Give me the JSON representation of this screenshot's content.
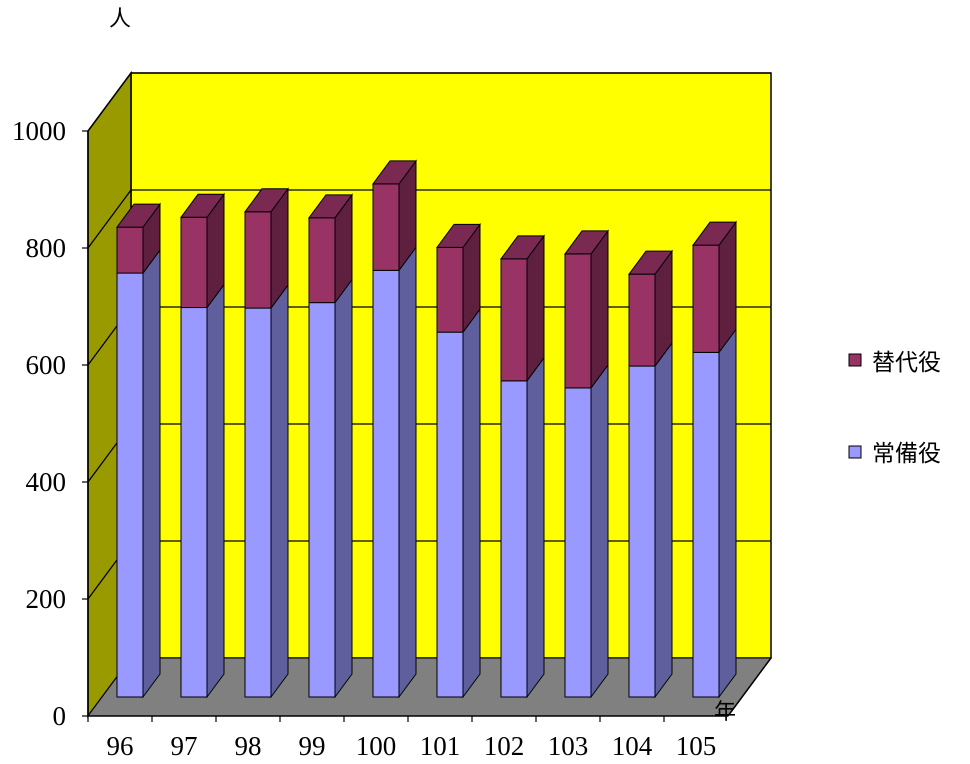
{
  "chart_data": {
    "type": "bar",
    "stacked": true,
    "three_d": true,
    "categories": [
      "96",
      "97",
      "98",
      "99",
      "100",
      "101",
      "102",
      "103",
      "104",
      "105"
    ],
    "series": [
      {
        "name": "常備役",
        "color": "#9999FF",
        "values": [
          775,
          712,
          711,
          721,
          780,
          667,
          578,
          565,
          605,
          630
        ]
      },
      {
        "name": "替代役",
        "color": "#993366",
        "values": [
          84,
          165,
          176,
          155,
          158,
          155,
          223,
          245,
          168,
          196
        ]
      }
    ],
    "y_ticks": [
      "0",
      "200",
      "400",
      "600",
      "800",
      "1000"
    ],
    "ylim": [
      0,
      1000
    ],
    "y_unit": "人",
    "x_unit": "年",
    "grid": true,
    "legend_position": "right",
    "colors": {
      "wall_back": "#FFFF00",
      "wall_side": "#999900",
      "floor": "#808080"
    }
  }
}
